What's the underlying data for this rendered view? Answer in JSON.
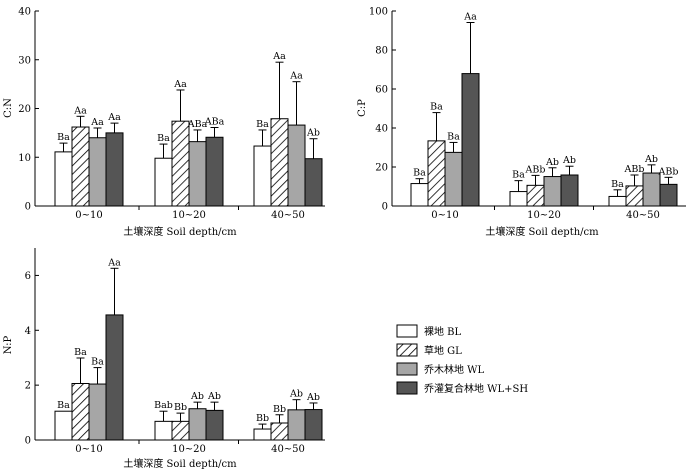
{
  "chart_data": [
    {
      "type": "bar",
      "id": "cn",
      "ylabel": "C:N",
      "xlabel": "土壤深度 Soil depth/cm",
      "categories": [
        "0~10",
        "10~20",
        "40~50"
      ],
      "ylim": [
        0,
        40
      ],
      "yticks": [
        0,
        10,
        20,
        30,
        40
      ],
      "series": [
        {
          "name": "裸地 BL",
          "values": [
            11.1,
            9.8,
            12.3
          ],
          "errors": [
            1.8,
            2.9,
            3.3
          ],
          "labels": [
            "Ba",
            "Ba",
            "Ba"
          ]
        },
        {
          "name": "草地 GL",
          "values": [
            16.2,
            17.4,
            17.9
          ],
          "errors": [
            2.2,
            6.4,
            11.6
          ],
          "labels": [
            "Aa",
            "Aa",
            "Aa"
          ]
        },
        {
          "name": "乔木林地 WL",
          "values": [
            14.0,
            13.2,
            16.6
          ],
          "errors": [
            2.0,
            2.4,
            8.9
          ],
          "labels": [
            "Aa",
            "ABa",
            "Aa"
          ]
        },
        {
          "name": "乔灌复合林地 WL+SH",
          "values": [
            15.0,
            14.1,
            9.7
          ],
          "errors": [
            2.0,
            2.0,
            4.1
          ],
          "labels": [
            "Aa",
            "ABa",
            "Ab"
          ]
        }
      ]
    },
    {
      "type": "bar",
      "id": "cp",
      "ylabel": "C:P",
      "xlabel": "土壤深度 Soil depth/cm",
      "categories": [
        "0~10",
        "10~20",
        "40~50"
      ],
      "ylim": [
        0,
        100
      ],
      "yticks": [
        0,
        20,
        40,
        60,
        80,
        100
      ],
      "series": [
        {
          "name": "裸地 BL",
          "values": [
            11.5,
            7.4,
            4.9
          ],
          "errors": [
            2.5,
            5.6,
            3.4
          ],
          "labels": [
            "Ba",
            "Ba",
            "Ba"
          ]
        },
        {
          "name": "草地 GL",
          "values": [
            33.4,
            10.6,
            10.3
          ],
          "errors": [
            14.5,
            5.1,
            5.6
          ],
          "labels": [
            "Ba",
            "ABb",
            "ABb"
          ]
        },
        {
          "name": "乔木林地 WL",
          "values": [
            27.5,
            15.1,
            16.9
          ],
          "errors": [
            5.1,
            4.5,
            4.2
          ],
          "labels": [
            "Ba",
            "Ab",
            "Ab"
          ]
        },
        {
          "name": "乔灌复合林地 WL+SH",
          "values": [
            67.9,
            15.9,
            11.1
          ],
          "errors": [
            26.2,
            4.5,
            3.6
          ],
          "labels": [
            "Aa",
            "Ab",
            "ABb"
          ]
        }
      ]
    },
    {
      "type": "bar",
      "id": "np",
      "ylabel": "N:P",
      "xlabel": "土壤深度 Soil depth/cm",
      "categories": [
        "0~10",
        "10~20",
        "40~50"
      ],
      "ylim": [
        0,
        7
      ],
      "yticks": [
        0,
        2,
        4,
        6
      ],
      "series": [
        {
          "name": "裸地 BL",
          "values": [
            1.05,
            0.68,
            0.4
          ],
          "errors": [
            0.0,
            0.37,
            0.18
          ],
          "labels": [
            "Ba",
            "Bab",
            "Bb"
          ]
        },
        {
          "name": "草地 GL",
          "values": [
            2.06,
            0.68,
            0.62
          ],
          "errors": [
            0.93,
            0.3,
            0.3
          ],
          "labels": [
            "Ba",
            "Bb",
            "Bb"
          ]
        },
        {
          "name": "乔木林地 WL",
          "values": [
            2.04,
            1.14,
            1.1
          ],
          "errors": [
            0.6,
            0.24,
            0.37
          ],
          "labels": [
            "Ba",
            "Ab",
            "Ab"
          ]
        },
        {
          "name": "乔灌复合林地 WL+SH",
          "values": [
            4.56,
            1.08,
            1.11
          ],
          "errors": [
            1.7,
            0.3,
            0.24
          ],
          "labels": [
            "Aa",
            "Ab",
            "Ab"
          ]
        }
      ]
    }
  ],
  "legend": {
    "items": [
      {
        "label": "裸地 BL",
        "fill": "#ffffff",
        "pattern": false
      },
      {
        "label": "草地 GL",
        "fill": "#ffffff",
        "pattern": true
      },
      {
        "label": "乔木林地 WL",
        "fill": "#a6a6a6",
        "pattern": false
      },
      {
        "label": "乔灌复合林地 WL+SH",
        "fill": "#555555",
        "pattern": false
      }
    ]
  },
  "colors": {
    "series": [
      "#ffffff",
      "#ffffff",
      "#a6a6a6",
      "#555555"
    ],
    "stroke": "#000000"
  }
}
